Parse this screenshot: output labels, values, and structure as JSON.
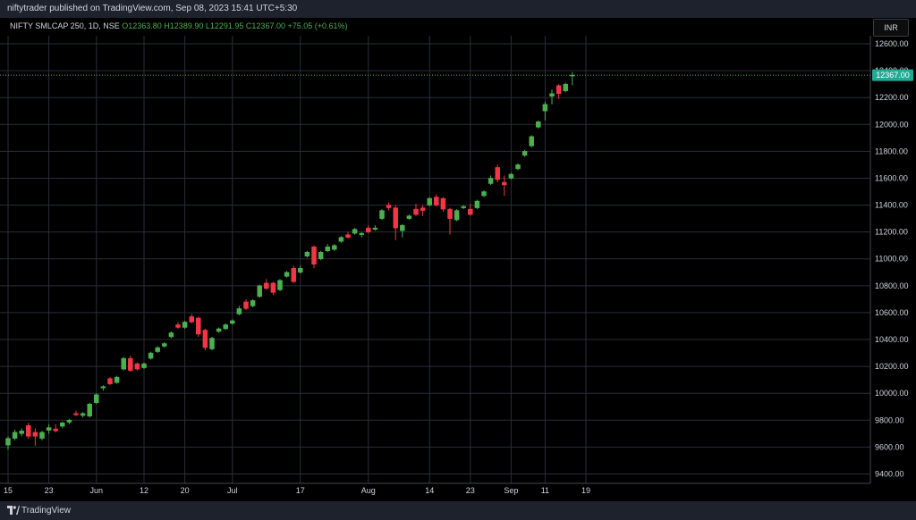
{
  "header": {
    "publisher_text": "niftytrader published on TradingView.com, Sep 08, 2023 15:41 UTC+5:30"
  },
  "legend": {
    "symbol": "NIFTY SMLCAP 250, 1D, NSE",
    "open": "O12363.80",
    "high": "H12389.90",
    "low": "L12291.95",
    "close": "C12367.00",
    "change": "+75.05 (+0.61%)"
  },
  "currency_button": "INR",
  "last_price_label": "12367.00",
  "footer": {
    "brand": "TradingView"
  },
  "colors": {
    "up": "#4caf50",
    "down": "#f23645",
    "background": "#000000",
    "grid": "#2a2e39",
    "price_tag": "#22ab94"
  },
  "chart_data": {
    "type": "candlestick",
    "y_axis": {
      "ticks": [
        9400,
        9600,
        9800,
        10000,
        10200,
        10400,
        10600,
        10800,
        11000,
        11200,
        11400,
        11600,
        11800,
        12000,
        12200,
        12400,
        12600
      ],
      "tick_labels": [
        "9400.00",
        "9600.00",
        "9800.00",
        "10000.00",
        "10200.00",
        "10400.00",
        "10600.00",
        "10800.00",
        "11000.00",
        "11200.00",
        "11400.00",
        "11600.00",
        "11800.00",
        "12000.00",
        "12200.00",
        "12400.00",
        "12600.00"
      ],
      "range": [
        9330,
        12660
      ]
    },
    "x_axis": {
      "labels": [
        "15",
        "23",
        "Jun",
        "12",
        "20",
        "Jul",
        "17",
        "Aug",
        "14",
        "23",
        "Sep",
        "11",
        "19"
      ],
      "label_bar_index": [
        0,
        6,
        13,
        20,
        26,
        33,
        43,
        53,
        62,
        68,
        74,
        79,
        85
      ]
    },
    "candles": [
      {
        "o": 9615,
        "h": 9680,
        "l": 9580,
        "c": 9665
      },
      {
        "o": 9665,
        "h": 9730,
        "l": 9650,
        "c": 9710
      },
      {
        "o": 9700,
        "h": 9740,
        "l": 9680,
        "c": 9720
      },
      {
        "o": 9760,
        "h": 9780,
        "l": 9660,
        "c": 9680
      },
      {
        "o": 9710,
        "h": 9740,
        "l": 9610,
        "c": 9680
      },
      {
        "o": 9665,
        "h": 9720,
        "l": 9650,
        "c": 9710
      },
      {
        "o": 9725,
        "h": 9770,
        "l": 9700,
        "c": 9745
      },
      {
        "o": 9735,
        "h": 9770,
        "l": 9710,
        "c": 9720
      },
      {
        "o": 9755,
        "h": 9790,
        "l": 9740,
        "c": 9780
      },
      {
        "o": 9785,
        "h": 9810,
        "l": 9770,
        "c": 9800
      },
      {
        "o": 9850,
        "h": 9870,
        "l": 9830,
        "c": 9840
      },
      {
        "o": 9835,
        "h": 9860,
        "l": 9820,
        "c": 9850
      },
      {
        "o": 9830,
        "h": 9930,
        "l": 9820,
        "c": 9920
      },
      {
        "o": 9930,
        "h": 10000,
        "l": 9920,
        "c": 9990
      },
      {
        "o": 10040,
        "h": 10060,
        "l": 10020,
        "c": 10050
      },
      {
        "o": 10110,
        "h": 10120,
        "l": 10060,
        "c": 10070
      },
      {
        "o": 10080,
        "h": 10130,
        "l": 10070,
        "c": 10120
      },
      {
        "o": 10180,
        "h": 10270,
        "l": 10170,
        "c": 10260
      },
      {
        "o": 10260,
        "h": 10280,
        "l": 10160,
        "c": 10170
      },
      {
        "o": 10220,
        "h": 10230,
        "l": 10170,
        "c": 10180
      },
      {
        "o": 10190,
        "h": 10230,
        "l": 10180,
        "c": 10220
      },
      {
        "o": 10260,
        "h": 10310,
        "l": 10250,
        "c": 10300
      },
      {
        "o": 10310,
        "h": 10350,
        "l": 10300,
        "c": 10340
      },
      {
        "o": 10350,
        "h": 10380,
        "l": 10340,
        "c": 10370
      },
      {
        "o": 10420,
        "h": 10460,
        "l": 10410,
        "c": 10450
      },
      {
        "o": 10510,
        "h": 10530,
        "l": 10480,
        "c": 10490
      },
      {
        "o": 10490,
        "h": 10540,
        "l": 10480,
        "c": 10530
      },
      {
        "o": 10570,
        "h": 10590,
        "l": 10520,
        "c": 10530
      },
      {
        "o": 10560,
        "h": 10570,
        "l": 10420,
        "c": 10440
      },
      {
        "o": 10470,
        "h": 10480,
        "l": 10320,
        "c": 10340
      },
      {
        "o": 10330,
        "h": 10420,
        "l": 10320,
        "c": 10410
      },
      {
        "o": 10460,
        "h": 10490,
        "l": 10450,
        "c": 10480
      },
      {
        "o": 10480,
        "h": 10520,
        "l": 10470,
        "c": 10510
      },
      {
        "o": 10520,
        "h": 10550,
        "l": 10510,
        "c": 10540
      },
      {
        "o": 10590,
        "h": 10650,
        "l": 10580,
        "c": 10630
      },
      {
        "o": 10680,
        "h": 10700,
        "l": 10620,
        "c": 10630
      },
      {
        "o": 10650,
        "h": 10700,
        "l": 10640,
        "c": 10690
      },
      {
        "o": 10720,
        "h": 10810,
        "l": 10710,
        "c": 10800
      },
      {
        "o": 10820,
        "h": 10850,
        "l": 10770,
        "c": 10780
      },
      {
        "o": 10820,
        "h": 10830,
        "l": 10730,
        "c": 10750
      },
      {
        "o": 10770,
        "h": 10850,
        "l": 10760,
        "c": 10840
      },
      {
        "o": 10870,
        "h": 10910,
        "l": 10860,
        "c": 10900
      },
      {
        "o": 10930,
        "h": 10950,
        "l": 10820,
        "c": 10830
      },
      {
        "o": 10900,
        "h": 10950,
        "l": 10890,
        "c": 10930
      },
      {
        "o": 11020,
        "h": 11060,
        "l": 11010,
        "c": 11050
      },
      {
        "o": 11090,
        "h": 11100,
        "l": 10930,
        "c": 10960
      },
      {
        "o": 11000,
        "h": 11060,
        "l": 10990,
        "c": 11050
      },
      {
        "o": 11060,
        "h": 11110,
        "l": 11050,
        "c": 11090
      },
      {
        "o": 11070,
        "h": 11110,
        "l": 11060,
        "c": 11100
      },
      {
        "o": 11130,
        "h": 11170,
        "l": 11120,
        "c": 11160
      },
      {
        "o": 11180,
        "h": 11200,
        "l": 11150,
        "c": 11160
      },
      {
        "o": 11190,
        "h": 11230,
        "l": 11180,
        "c": 11220
      },
      {
        "o": 11180,
        "h": 11200,
        "l": 11160,
        "c": 11190
      },
      {
        "o": 11230,
        "h": 11250,
        "l": 11190,
        "c": 11200
      },
      {
        "o": 11220,
        "h": 11250,
        "l": 11210,
        "c": 11230
      },
      {
        "o": 11300,
        "h": 11370,
        "l": 11290,
        "c": 11360
      },
      {
        "o": 11400,
        "h": 11420,
        "l": 11360,
        "c": 11380
      },
      {
        "o": 11380,
        "h": 11400,
        "l": 11140,
        "c": 11230
      },
      {
        "o": 11210,
        "h": 11260,
        "l": 11160,
        "c": 11250
      },
      {
        "o": 11300,
        "h": 11330,
        "l": 11290,
        "c": 11320
      },
      {
        "o": 11370,
        "h": 11410,
        "l": 11320,
        "c": 11330
      },
      {
        "o": 11380,
        "h": 11400,
        "l": 11320,
        "c": 11360
      },
      {
        "o": 11400,
        "h": 11460,
        "l": 11390,
        "c": 11450
      },
      {
        "o": 11460,
        "h": 11480,
        "l": 11390,
        "c": 11400
      },
      {
        "o": 11450,
        "h": 11460,
        "l": 11350,
        "c": 11370
      },
      {
        "o": 11370,
        "h": 11380,
        "l": 11180,
        "c": 11300
      },
      {
        "o": 11290,
        "h": 11370,
        "l": 11280,
        "c": 11360
      },
      {
        "o": 11380,
        "h": 11400,
        "l": 11370,
        "c": 11390
      },
      {
        "o": 11370,
        "h": 11410,
        "l": 11320,
        "c": 11330
      },
      {
        "o": 11380,
        "h": 11440,
        "l": 11370,
        "c": 11430
      },
      {
        "o": 11470,
        "h": 11510,
        "l": 11460,
        "c": 11500
      },
      {
        "o": 11560,
        "h": 11620,
        "l": 11550,
        "c": 11600
      },
      {
        "o": 11680,
        "h": 11700,
        "l": 11570,
        "c": 11590
      },
      {
        "o": 11570,
        "h": 11620,
        "l": 11470,
        "c": 11550
      },
      {
        "o": 11600,
        "h": 11640,
        "l": 11590,
        "c": 11630
      },
      {
        "o": 11670,
        "h": 11710,
        "l": 11660,
        "c": 11700
      },
      {
        "o": 11770,
        "h": 11810,
        "l": 11760,
        "c": 11800
      },
      {
        "o": 11840,
        "h": 11920,
        "l": 11830,
        "c": 11910
      },
      {
        "o": 11980,
        "h": 12030,
        "l": 11970,
        "c": 12020
      },
      {
        "o": 12100,
        "h": 12170,
        "l": 12030,
        "c": 12150
      },
      {
        "o": 12210,
        "h": 12260,
        "l": 12150,
        "c": 12230
      },
      {
        "o": 12290,
        "h": 12300,
        "l": 12190,
        "c": 12230
      },
      {
        "o": 12250,
        "h": 12310,
        "l": 12240,
        "c": 12300
      },
      {
        "o": 12363.8,
        "h": 12389.9,
        "l": 12291.95,
        "c": 12367
      }
    ]
  }
}
